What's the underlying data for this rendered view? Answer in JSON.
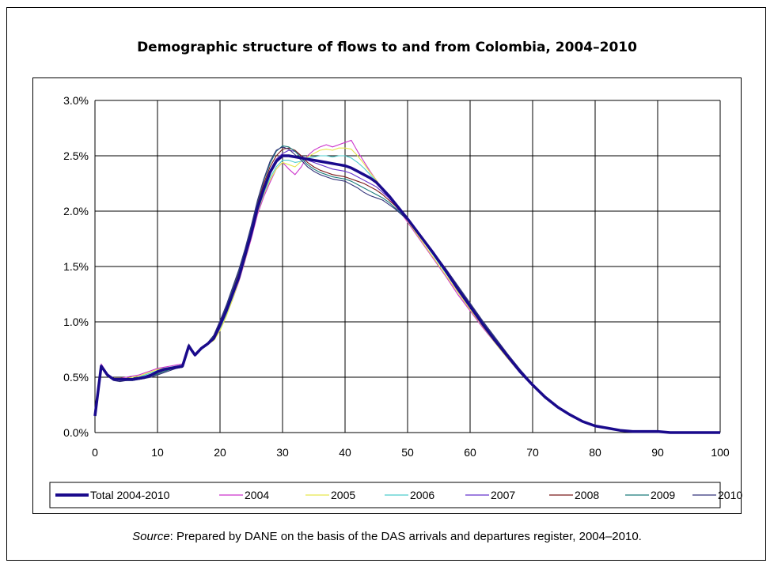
{
  "title": "Demographic structure of flows to and from Colombia, 2004–2010",
  "source": {
    "label": "Source",
    "text": ": Prepared by DANE on the basis of the DAS arrivals and departures register, 2004–2010."
  },
  "chart_data": {
    "type": "line",
    "title": "Demographic structure of flows to and from Colombia, 2004–2010",
    "xlabel": "",
    "ylabel": "",
    "xlim": [
      0,
      100
    ],
    "ylim": [
      0,
      0.03
    ],
    "xticks": [
      0,
      10,
      20,
      30,
      40,
      50,
      60,
      70,
      80,
      90,
      100
    ],
    "yticks": [
      "0.0%",
      "0.5%",
      "1.0%",
      "1.5%",
      "2.0%",
      "2.5%",
      "3.0%"
    ],
    "grid": true,
    "legend_position": "bottom",
    "x": [
      0,
      1,
      2,
      3,
      4,
      5,
      6,
      7,
      8,
      9,
      10,
      11,
      12,
      13,
      14,
      15,
      16,
      17,
      18,
      19,
      20,
      21,
      22,
      23,
      24,
      25,
      26,
      27,
      28,
      29,
      30,
      31,
      32,
      33,
      34,
      35,
      36,
      37,
      38,
      39,
      40,
      41,
      42,
      43,
      44,
      45,
      46,
      47,
      48,
      49,
      50,
      52,
      54,
      56,
      58,
      60,
      62,
      64,
      66,
      68,
      70,
      72,
      74,
      76,
      78,
      80,
      82,
      84,
      86,
      88,
      90,
      92,
      95,
      100
    ],
    "series": [
      {
        "name": "Total 2004-2010",
        "color": "#1a0a8c",
        "width": 4,
        "values": [
          0.0015,
          0.006,
          0.0052,
          0.0048,
          0.0048,
          0.0048,
          0.0048,
          0.0049,
          0.005,
          0.0052,
          0.0055,
          0.0057,
          0.0058,
          0.0059,
          0.006,
          0.0078,
          0.007,
          0.0076,
          0.008,
          0.0085,
          0.0097,
          0.011,
          0.0125,
          0.014,
          0.016,
          0.018,
          0.0203,
          0.022,
          0.0235,
          0.0245,
          0.025,
          0.025,
          0.0249,
          0.0248,
          0.0247,
          0.0246,
          0.0245,
          0.0244,
          0.0243,
          0.0242,
          0.0241,
          0.0239,
          0.0236,
          0.0233,
          0.023,
          0.0226,
          0.022,
          0.0214,
          0.0207,
          0.02,
          0.0193,
          0.0178,
          0.0163,
          0.0147,
          0.013,
          0.0114,
          0.0098,
          0.0083,
          0.0069,
          0.0055,
          0.0043,
          0.0032,
          0.0023,
          0.0016,
          0.001,
          0.0006,
          0.0004,
          0.0002,
          0.0001,
          0.0001,
          0.0001,
          0.0,
          0.0,
          0.0
        ]
      },
      {
        "name": "2004",
        "color": "#cc33cc",
        "width": 1,
        "values": [
          0.0016,
          0.0062,
          0.0053,
          0.0049,
          0.0049,
          0.005,
          0.0051,
          0.0052,
          0.0054,
          0.0056,
          0.0058,
          0.0059,
          0.006,
          0.0061,
          0.0062,
          0.0078,
          0.0071,
          0.0077,
          0.0081,
          0.0084,
          0.0093,
          0.0106,
          0.012,
          0.0136,
          0.0155,
          0.0175,
          0.0197,
          0.0213,
          0.0226,
          0.0238,
          0.0244,
          0.0238,
          0.0233,
          0.024,
          0.025,
          0.0255,
          0.0258,
          0.026,
          0.0258,
          0.026,
          0.0262,
          0.0264,
          0.0254,
          0.0245,
          0.0236,
          0.0228,
          0.0219,
          0.0212,
          0.0205,
          0.0198,
          0.019,
          0.0174,
          0.0158,
          0.0142,
          0.0125,
          0.011,
          0.0095,
          0.0081,
          0.0067,
          0.0054,
          0.0042,
          0.0032,
          0.0023,
          0.0016,
          0.001,
          0.0006,
          0.0004,
          0.0002,
          0.0001,
          0.0001,
          0.0001,
          0.0,
          0.0,
          0.0
        ]
      },
      {
        "name": "2005",
        "color": "#e6e64d",
        "width": 1,
        "values": [
          0.0016,
          0.0061,
          0.0052,
          0.0049,
          0.0049,
          0.0049,
          0.005,
          0.0051,
          0.0053,
          0.0055,
          0.0057,
          0.0058,
          0.0059,
          0.006,
          0.0061,
          0.0077,
          0.007,
          0.0076,
          0.008,
          0.0083,
          0.0092,
          0.0105,
          0.012,
          0.0137,
          0.0156,
          0.0177,
          0.0199,
          0.0215,
          0.0228,
          0.0238,
          0.0244,
          0.0242,
          0.024,
          0.0245,
          0.0249,
          0.0252,
          0.0255,
          0.0256,
          0.0255,
          0.0257,
          0.0257,
          0.0256,
          0.025,
          0.0243,
          0.0235,
          0.0228,
          0.022,
          0.0213,
          0.0206,
          0.0199,
          0.0191,
          0.0175,
          0.0159,
          0.0143,
          0.0127,
          0.0111,
          0.0096,
          0.0081,
          0.0067,
          0.0054,
          0.0042,
          0.0032,
          0.0023,
          0.0016,
          0.001,
          0.0006,
          0.0004,
          0.0002,
          0.0001,
          0.0001,
          0.0001,
          0.0,
          0.0,
          0.0
        ]
      },
      {
        "name": "2006",
        "color": "#4dcccc",
        "width": 1,
        "values": [
          0.0016,
          0.0061,
          0.0052,
          0.0049,
          0.0048,
          0.0049,
          0.0049,
          0.005,
          0.0052,
          0.0054,
          0.0056,
          0.0058,
          0.0059,
          0.006,
          0.0061,
          0.0077,
          0.007,
          0.0076,
          0.008,
          0.0084,
          0.0094,
          0.0107,
          0.0122,
          0.0138,
          0.0157,
          0.0178,
          0.02,
          0.0216,
          0.023,
          0.024,
          0.0246,
          0.0246,
          0.0244,
          0.0245,
          0.0248,
          0.0249,
          0.025,
          0.025,
          0.0249,
          0.025,
          0.025,
          0.0248,
          0.0244,
          0.0239,
          0.0233,
          0.0227,
          0.022,
          0.0214,
          0.0207,
          0.02,
          0.0193,
          0.0177,
          0.0161,
          0.0145,
          0.0129,
          0.0113,
          0.0097,
          0.0082,
          0.0068,
          0.0055,
          0.0043,
          0.0032,
          0.0023,
          0.0016,
          0.001,
          0.0006,
          0.0004,
          0.0002,
          0.0001,
          0.0001,
          0.0001,
          0.0,
          0.0,
          0.0
        ]
      },
      {
        "name": "2007",
        "color": "#6633cc",
        "width": 1,
        "values": [
          0.0015,
          0.006,
          0.0052,
          0.0048,
          0.0047,
          0.0048,
          0.0048,
          0.0049,
          0.005,
          0.0052,
          0.0054,
          0.0056,
          0.0058,
          0.0059,
          0.006,
          0.0077,
          0.007,
          0.0076,
          0.008,
          0.0085,
          0.0097,
          0.0111,
          0.0126,
          0.0142,
          0.0161,
          0.0181,
          0.0204,
          0.0222,
          0.0237,
          0.0247,
          0.0252,
          0.0255,
          0.0254,
          0.025,
          0.0246,
          0.0244,
          0.0242,
          0.024,
          0.0238,
          0.0237,
          0.0236,
          0.0234,
          0.0231,
          0.0228,
          0.0225,
          0.0222,
          0.0217,
          0.0212,
          0.0206,
          0.02,
          0.0193,
          0.0178,
          0.0163,
          0.0147,
          0.0131,
          0.0115,
          0.0099,
          0.0084,
          0.0069,
          0.0056,
          0.0044,
          0.0033,
          0.0024,
          0.0016,
          0.001,
          0.0006,
          0.0004,
          0.0002,
          0.0001,
          0.0001,
          0.0001,
          0.0,
          0.0,
          0.0
        ]
      },
      {
        "name": "2008",
        "color": "#7a1a1a",
        "width": 1,
        "values": [
          0.0015,
          0.006,
          0.0052,
          0.0048,
          0.0047,
          0.0047,
          0.0048,
          0.0048,
          0.0049,
          0.0051,
          0.0053,
          0.0055,
          0.0057,
          0.0058,
          0.0059,
          0.0078,
          0.007,
          0.0076,
          0.008,
          0.0086,
          0.0099,
          0.0113,
          0.0128,
          0.0144,
          0.0163,
          0.0183,
          0.0207,
          0.0225,
          0.024,
          0.025,
          0.0256,
          0.0257,
          0.0255,
          0.025,
          0.0244,
          0.024,
          0.0237,
          0.0235,
          0.0233,
          0.0232,
          0.0231,
          0.0229,
          0.0227,
          0.0225,
          0.0222,
          0.0219,
          0.0215,
          0.021,
          0.0205,
          0.0199,
          0.0193,
          0.0178,
          0.0163,
          0.0148,
          0.0132,
          0.0116,
          0.01,
          0.0085,
          0.007,
          0.0056,
          0.0044,
          0.0033,
          0.0024,
          0.0016,
          0.001,
          0.0006,
          0.0004,
          0.0002,
          0.0001,
          0.0001,
          0.0001,
          0.0,
          0.0,
          0.0
        ]
      },
      {
        "name": "2009",
        "color": "#1a7a7a",
        "width": 1,
        "values": [
          0.0015,
          0.0059,
          0.0051,
          0.0048,
          0.0047,
          0.0047,
          0.0047,
          0.0048,
          0.0049,
          0.0051,
          0.0053,
          0.0055,
          0.0057,
          0.0058,
          0.0059,
          0.0079,
          0.0071,
          0.0077,
          0.0081,
          0.0087,
          0.01,
          0.0114,
          0.013,
          0.0146,
          0.0165,
          0.0185,
          0.0209,
          0.0228,
          0.0243,
          0.0254,
          0.0259,
          0.0258,
          0.0254,
          0.0248,
          0.0242,
          0.0238,
          0.0235,
          0.0233,
          0.0231,
          0.023,
          0.0229,
          0.0227,
          0.0224,
          0.0221,
          0.0218,
          0.0215,
          0.0212,
          0.0208,
          0.0203,
          0.0198,
          0.0192,
          0.0178,
          0.0163,
          0.0148,
          0.0132,
          0.0116,
          0.01,
          0.0085,
          0.007,
          0.0056,
          0.0044,
          0.0033,
          0.0024,
          0.0016,
          0.001,
          0.0006,
          0.0004,
          0.0002,
          0.0001,
          0.0001,
          0.0001,
          0.0,
          0.0,
          0.0
        ]
      },
      {
        "name": "2010",
        "color": "#33337a",
        "width": 1,
        "values": [
          0.0015,
          0.0059,
          0.0051,
          0.0047,
          0.0046,
          0.0047,
          0.0047,
          0.0048,
          0.0049,
          0.005,
          0.0052,
          0.0054,
          0.0056,
          0.0058,
          0.0059,
          0.008,
          0.0071,
          0.0077,
          0.0081,
          0.0088,
          0.0101,
          0.0115,
          0.0131,
          0.0147,
          0.0166,
          0.0187,
          0.021,
          0.0229,
          0.0245,
          0.0255,
          0.0258,
          0.0256,
          0.0251,
          0.0246,
          0.024,
          0.0236,
          0.0233,
          0.0231,
          0.0229,
          0.0228,
          0.0227,
          0.0224,
          0.0221,
          0.0217,
          0.0214,
          0.0212,
          0.021,
          0.0206,
          0.0202,
          0.0197,
          0.0192,
          0.0178,
          0.0164,
          0.0149,
          0.0133,
          0.0117,
          0.0101,
          0.0086,
          0.0071,
          0.0057,
          0.0044,
          0.0033,
          0.0024,
          0.0016,
          0.001,
          0.0006,
          0.0004,
          0.0002,
          0.0001,
          0.0001,
          0.0001,
          0.0,
          0.0,
          0.0
        ]
      }
    ]
  }
}
